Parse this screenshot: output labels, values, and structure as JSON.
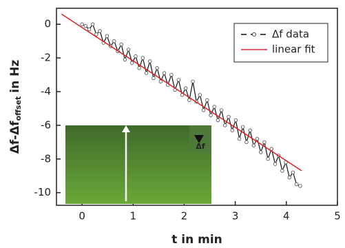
{
  "chart_data": {
    "type": "line",
    "x_label": "t in min",
    "y_label": "Δf-Δf",
    "y_label_sub": "offset",
    "y_label_unit": "in Hz",
    "xlim": [
      -0.5,
      5
    ],
    "xticks": [
      0,
      1,
      2,
      3,
      4,
      5
    ],
    "ylim": [
      -10.75,
      0.95
    ],
    "yticks": [
      0,
      -2,
      -4,
      -6,
      -8,
      -10
    ],
    "legend": "upper right",
    "inset_label": "Δf",
    "series": [
      {
        "name": "Δf data",
        "color": "#111111",
        "markers": true,
        "x": [
          0,
          0.07,
          0.14,
          0.21,
          0.28,
          0.35,
          0.42,
          0.49,
          0.56,
          0.63,
          0.7,
          0.77,
          0.84,
          0.91,
          0.98,
          1.05,
          1.12,
          1.19,
          1.26,
          1.33,
          1.4,
          1.47,
          1.54,
          1.61,
          1.68,
          1.75,
          1.82,
          1.89,
          1.96,
          2.03,
          2.1,
          2.17,
          2.24,
          2.31,
          2.38,
          2.45,
          2.52,
          2.59,
          2.66,
          2.73,
          2.8,
          2.87,
          2.94,
          3.01,
          3.08,
          3.15,
          3.22,
          3.29,
          3.36,
          3.43,
          3.5,
          3.57,
          3.64,
          3.71,
          3.78,
          3.85,
          3.92,
          3.99,
          4.06,
          4.13,
          4.2,
          4.27
        ],
        "values": [
          0,
          -0.1,
          -0.3,
          0,
          -0.6,
          -0.4,
          -1.1,
          -0.7,
          -1.3,
          -1,
          -1.6,
          -1.2,
          -2.1,
          -1.5,
          -2.3,
          -1.9,
          -2.6,
          -2,
          -2.9,
          -2.2,
          -3.2,
          -2.6,
          -3.4,
          -2.9,
          -3.6,
          -3,
          -3.9,
          -3.3,
          -4.2,
          -3.8,
          -4.5,
          -3.4,
          -4.6,
          -4.2,
          -5.1,
          -4.5,
          -5.4,
          -4.9,
          -5.7,
          -5.1,
          -6,
          -5.5,
          -6.3,
          -5.7,
          -6.8,
          -6.1,
          -7,
          -6.3,
          -7.2,
          -6.8,
          -7.6,
          -7,
          -8,
          -7.4,
          -8.3,
          -7.8,
          -8.7,
          -8.2,
          -9.1,
          -8.8,
          -9.5,
          -9.6
        ]
      },
      {
        "name": "linear fit",
        "color": "#e02020",
        "markers": false,
        "x": [
          -0.4,
          4.3
        ],
        "values": [
          0.6,
          -8.7
        ]
      }
    ]
  }
}
